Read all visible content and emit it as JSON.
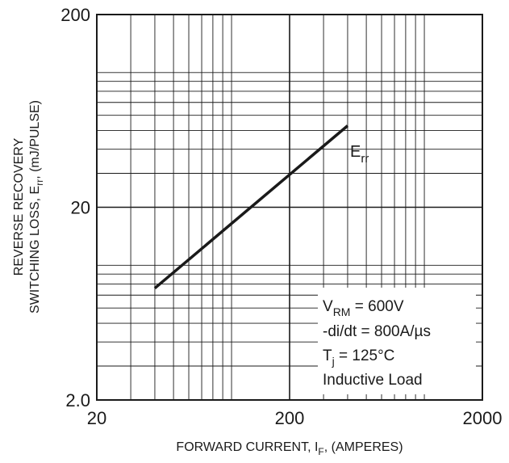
{
  "chart_data": {
    "type": "line",
    "title": "",
    "xlabel": {
      "main": "FORWARD CURRENT, I",
      "sub": "F",
      "suffix": ", (AMPERES)"
    },
    "ylabel": {
      "line1": "REVERSE RECOVERY",
      "line2_main": "SWITCHING LOSS, E",
      "line2_sub": "rr",
      "line2_suffix": ", (mJ/PULSE)"
    },
    "x_scale": "log",
    "y_scale": "log",
    "xlim": [
      20,
      2000
    ],
    "ylim": [
      2,
      200
    ],
    "x_ticks": [
      {
        "value": 20,
        "label": "20"
      },
      {
        "value": 200,
        "label": "200"
      },
      {
        "value": 2000,
        "label": "2000"
      }
    ],
    "y_ticks": [
      {
        "value": 2,
        "label": "2.0"
      },
      {
        "value": 20,
        "label": "20"
      },
      {
        "value": 200,
        "label": "200"
      }
    ],
    "grid": true,
    "series": [
      {
        "name_main": "E",
        "name_sub": "rr",
        "x": [
          40,
          400
        ],
        "y": [
          7.6,
          53
        ]
      }
    ],
    "annotations": {
      "vrm_main": "V",
      "vrm_sub": "RM",
      "vrm_value": " = 600V",
      "didt": "-di/dt = 800A/µs",
      "tj_main": "T",
      "tj_sub": "j",
      "tj_value": " = 125°C",
      "load": "Inductive Load"
    },
    "colors": {
      "line": "#1a1a1a",
      "grid": "#1a1a1a"
    }
  }
}
